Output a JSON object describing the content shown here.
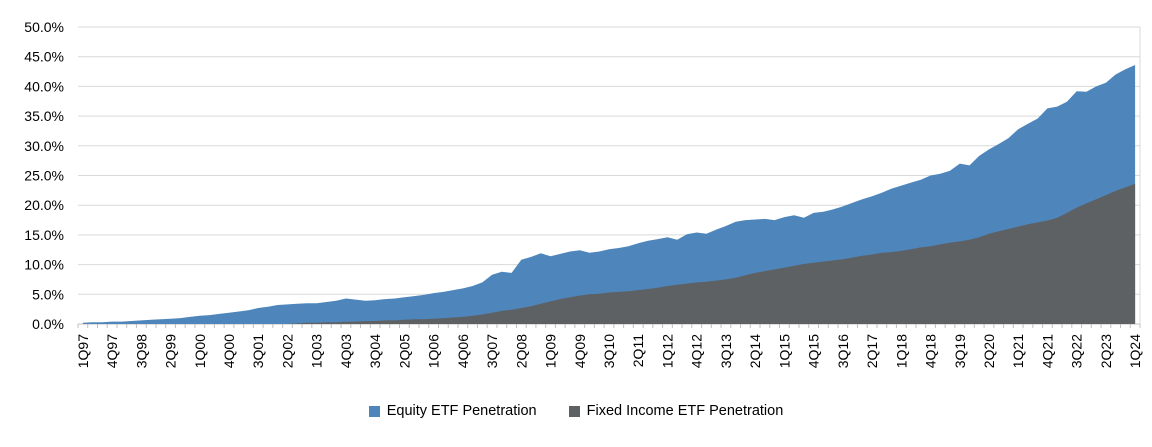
{
  "chart_data": {
    "type": "area",
    "overlaid": true,
    "grid": true,
    "legend_position": "bottom",
    "categories": [
      "1Q97",
      "2Q97",
      "3Q97",
      "4Q97",
      "1Q98",
      "2Q98",
      "3Q98",
      "4Q98",
      "1Q99",
      "2Q99",
      "3Q99",
      "4Q99",
      "1Q00",
      "2Q00",
      "3Q00",
      "4Q00",
      "1Q01",
      "2Q01",
      "3Q01",
      "4Q01",
      "1Q02",
      "2Q02",
      "3Q02",
      "4Q02",
      "1Q03",
      "2Q03",
      "3Q03",
      "4Q03",
      "1Q04",
      "2Q04",
      "3Q04",
      "4Q04",
      "1Q05",
      "2Q05",
      "3Q05",
      "4Q05",
      "1Q06",
      "2Q06",
      "3Q06",
      "4Q06",
      "1Q07",
      "2Q07",
      "3Q07",
      "4Q07",
      "1Q08",
      "2Q08",
      "3Q08",
      "4Q08",
      "1Q09",
      "2Q09",
      "3Q09",
      "4Q09",
      "1Q10",
      "2Q10",
      "3Q10",
      "4Q10",
      "1Q11",
      "2Q11",
      "3Q11",
      "4Q11",
      "1Q12",
      "2Q12",
      "3Q12",
      "4Q12",
      "1Q13",
      "2Q13",
      "3Q13",
      "4Q13",
      "1Q14",
      "2Q14",
      "3Q14",
      "4Q14",
      "1Q15",
      "2Q15",
      "3Q15",
      "4Q15",
      "1Q16",
      "2Q16",
      "3Q16",
      "4Q16",
      "1Q17",
      "2Q17",
      "3Q17",
      "4Q17",
      "1Q18",
      "2Q18",
      "3Q18",
      "4Q18",
      "1Q19",
      "2Q19",
      "3Q19",
      "4Q19",
      "1Q20",
      "2Q20",
      "3Q20",
      "4Q20",
      "1Q21",
      "2Q21",
      "3Q21",
      "4Q21",
      "1Q22",
      "2Q22",
      "3Q22",
      "4Q22",
      "1Q23",
      "2Q23",
      "3Q23",
      "4Q23",
      "1Q24"
    ],
    "x_label_interval": 3,
    "series": [
      {
        "name": "Equity ETF Penetration",
        "color": "#4E86BC",
        "values": [
          0.2,
          0.3,
          0.3,
          0.4,
          0.4,
          0.5,
          0.6,
          0.7,
          0.8,
          0.9,
          1.0,
          1.2,
          1.4,
          1.5,
          1.7,
          1.9,
          2.1,
          2.3,
          2.7,
          2.9,
          3.2,
          3.3,
          3.4,
          3.5,
          3.5,
          3.7,
          3.9,
          4.3,
          4.1,
          3.9,
          4.0,
          4.2,
          4.3,
          4.5,
          4.7,
          4.9,
          5.2,
          5.4,
          5.7,
          6.0,
          6.4,
          7.0,
          8.3,
          8.8,
          8.6,
          10.8,
          11.3,
          11.9,
          11.4,
          11.8,
          12.2,
          12.4,
          12.0,
          12.2,
          12.6,
          12.8,
          13.1,
          13.6,
          14.0,
          14.3,
          14.6,
          14.2,
          15.1,
          15.4,
          15.2,
          15.9,
          16.5,
          17.2,
          17.5,
          17.6,
          17.7,
          17.5,
          18.0,
          18.3,
          17.9,
          18.7,
          18.9,
          19.3,
          19.8,
          20.4,
          21.0,
          21.5,
          22.1,
          22.8,
          23.3,
          23.8,
          24.3,
          25.0,
          25.3,
          25.8,
          27.0,
          26.7,
          28.3,
          29.4,
          30.3,
          31.3,
          32.8,
          33.7,
          34.6,
          36.3,
          36.6,
          37.4,
          39.2,
          39.1,
          40.0,
          40.6,
          42.0,
          42.9,
          43.6
        ]
      },
      {
        "name": "Fixed Income ETF Penetration",
        "color": "#5E6164",
        "values": [
          0,
          0,
          0,
          0,
          0,
          0,
          0,
          0,
          0,
          0,
          0,
          0,
          0,
          0,
          0,
          0,
          0,
          0,
          0,
          0,
          0,
          0,
          0.1,
          0.2,
          0.2,
          0.3,
          0.3,
          0.4,
          0.4,
          0.5,
          0.5,
          0.6,
          0.6,
          0.7,
          0.8,
          0.8,
          0.9,
          1.0,
          1.1,
          1.2,
          1.4,
          1.6,
          1.9,
          2.2,
          2.4,
          2.7,
          3.0,
          3.4,
          3.8,
          4.2,
          4.5,
          4.8,
          5.0,
          5.1,
          5.3,
          5.4,
          5.5,
          5.7,
          5.9,
          6.1,
          6.4,
          6.6,
          6.8,
          7.0,
          7.1,
          7.3,
          7.5,
          7.8,
          8.2,
          8.6,
          8.9,
          9.2,
          9.5,
          9.8,
          10.1,
          10.3,
          10.5,
          10.7,
          10.9,
          11.2,
          11.5,
          11.7,
          12.0,
          12.1,
          12.3,
          12.6,
          12.9,
          13.1,
          13.4,
          13.7,
          13.9,
          14.2,
          14.6,
          15.2,
          15.6,
          16.0,
          16.4,
          16.8,
          17.1,
          17.4,
          17.9,
          18.7,
          19.6,
          20.3,
          21.0,
          21.7,
          22.4,
          23.0,
          23.6
        ]
      }
    ],
    "y_axis": {
      "min": 0,
      "max": 50,
      "step": 5,
      "tick_labels": [
        "0.0%",
        "5.0%",
        "10.0%",
        "15.0%",
        "20.0%",
        "25.0%",
        "30.0%",
        "35.0%",
        "40.0%",
        "45.0%",
        "50.0%"
      ]
    }
  },
  "style": {
    "gridline_color": "#D9D9D9",
    "axis_color": "#BFBFBF",
    "text_color": "#000000"
  }
}
